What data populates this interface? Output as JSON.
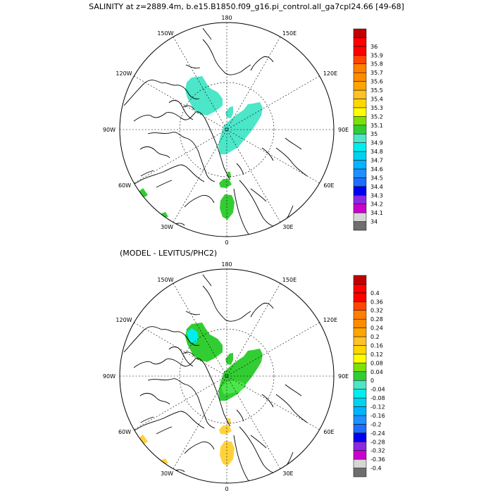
{
  "title": "SALINITY at z=2889.4m, b.e15.B1850.f09_g16.pi_control.all_ga7cpl24.66 [49-68]",
  "diff_title": "(MODEL - LEVITUS/PHC2)",
  "lon_labels": {
    "top": "180",
    "bottom": "0",
    "left": "90W",
    "right": "90E",
    "w150": "150W",
    "e150": "150E",
    "w120": "120W",
    "e120": "120E",
    "w60": "60W",
    "e60": "60E",
    "w30": "30W",
    "e30": "30E"
  },
  "colorbar_colors": [
    "#6e6e6e",
    "#d6d6d6",
    "#cc00cc",
    "#8a2be2",
    "#0000ee",
    "#1e6eff",
    "#1e90ff",
    "#00b4ff",
    "#00d2f0",
    "#00eeee",
    "#4ce6c8",
    "#32cd32",
    "#7ce00a",
    "#ffff00",
    "#ffd700",
    "#ffc125",
    "#ffa500",
    "#ff8c00",
    "#ff7f00",
    "#ff4500",
    "#ff0000",
    "#ff0000",
    "#c00000"
  ],
  "colorbar_salinity": [
    "34",
    "34.1",
    "34.2",
    "34.3",
    "34.4",
    "34.5",
    "34.6",
    "34.7",
    "34.8",
    "34.9",
    "35",
    "35.1",
    "35.2",
    "35.3",
    "35.4",
    "35.5",
    "35.6",
    "35.7",
    "35.8",
    "35.9",
    "36"
  ],
  "colorbar_diff": [
    "-0.4",
    "-0.36",
    "-0.32",
    "-0.28",
    "-0.24",
    "-0.2",
    "-0.16",
    "-0.12",
    "-0.08",
    "-0.04",
    "0",
    "0.04",
    "0.08",
    "0.12",
    "0.16",
    "0.2",
    "0.24",
    "0.28",
    "0.32",
    "0.36",
    "0.4"
  ],
  "colors": {
    "aquamarine": "#4ce6c8",
    "green": "#32cd32",
    "light_green": "#4ce64c",
    "cyan": "#00eeee",
    "gold": "#ffd23c"
  }
}
